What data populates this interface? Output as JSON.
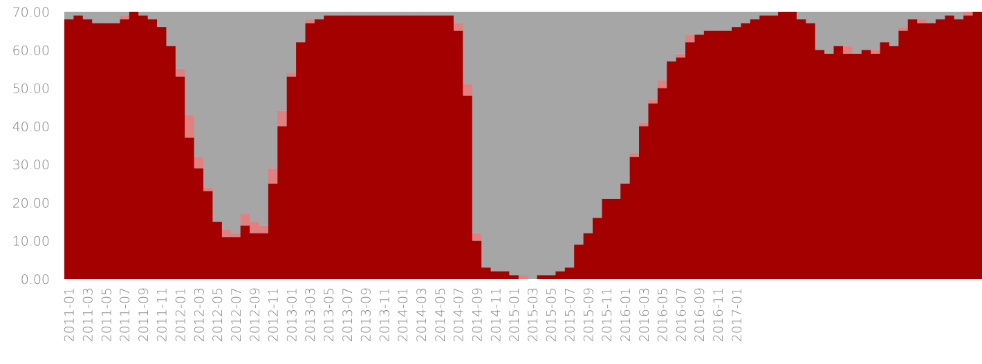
{
  "chart_data": {
    "type": "area",
    "stacked": true,
    "ylim": [
      0,
      70
    ],
    "y_ticks": [
      "0.00",
      "10.00",
      "20.00",
      "30.00",
      "40.00",
      "50.00",
      "60.00",
      "70.00"
    ],
    "x_tick_labels": [
      "2011-01",
      "2011-03",
      "2011-05",
      "2011-07",
      "2011-09",
      "2011-11",
      "2012-01",
      "2012-03",
      "2012-05",
      "2012-07",
      "2012-09",
      "2012-11",
      "2013-01",
      "2013-03",
      "2013-05",
      "2013-07",
      "2013-09",
      "2013-11",
      "2014-01",
      "2014-03",
      "2014-05",
      "2014-07",
      "2014-09",
      "2014-11",
      "2015-01",
      "2015-03",
      "2015-05",
      "2015-07",
      "2015-09",
      "2015-11",
      "2016-01",
      "2016-03",
      "2016-05",
      "2016-07",
      "2016-09",
      "2016-11",
      "2017-01"
    ],
    "x_start": "2011-01",
    "grid": false,
    "legend": "none",
    "colors": {
      "lower": "#a50000",
      "middle": "#e08080",
      "upper": "#a6a6a6"
    },
    "series_lower": [
      68,
      69,
      68,
      67,
      67,
      67,
      68,
      70,
      69,
      68,
      66,
      61,
      53,
      37,
      29,
      23,
      15,
      11,
      11,
      14,
      12,
      12,
      25,
      40,
      53,
      62,
      67,
      68,
      69,
      69,
      69,
      69,
      69,
      69,
      69,
      69,
      69,
      69,
      69,
      69,
      69,
      69,
      65,
      48,
      10,
      3,
      2,
      2,
      1,
      0,
      0,
      1,
      1,
      2,
      3,
      9,
      12,
      16,
      21,
      21,
      25,
      32,
      40,
      46,
      50,
      57,
      58,
      62,
      64,
      65,
      65,
      65,
      66,
      67,
      68,
      69,
      69,
      70,
      70,
      68,
      67,
      60,
      59,
      61,
      59,
      59,
      60,
      59,
      62,
      61,
      65,
      68,
      67,
      67,
      68,
      69,
      68,
      69,
      70
    ],
    "series_middle": [
      0,
      0,
      0,
      0,
      0,
      0,
      1,
      0,
      0,
      0,
      0,
      0,
      2,
      6,
      3,
      1,
      0,
      2,
      1,
      3,
      3,
      2,
      4,
      4,
      1,
      0,
      1,
      0,
      0,
      0,
      0,
      0,
      0,
      0,
      0,
      0,
      0,
      0,
      0,
      0,
      0,
      0,
      2,
      3,
      2,
      0,
      0,
      0,
      0,
      1,
      0,
      0,
      0,
      0,
      0,
      0,
      0,
      0,
      0,
      0,
      0,
      1,
      1,
      1,
      2,
      0,
      1,
      2,
      0,
      0,
      0,
      0,
      0,
      0,
      0,
      0,
      0,
      0,
      0,
      0,
      0,
      0,
      0,
      0,
      2,
      0,
      0,
      1,
      0,
      0,
      1,
      0,
      1,
      0,
      0,
      0,
      0,
      1,
      0
    ]
  }
}
